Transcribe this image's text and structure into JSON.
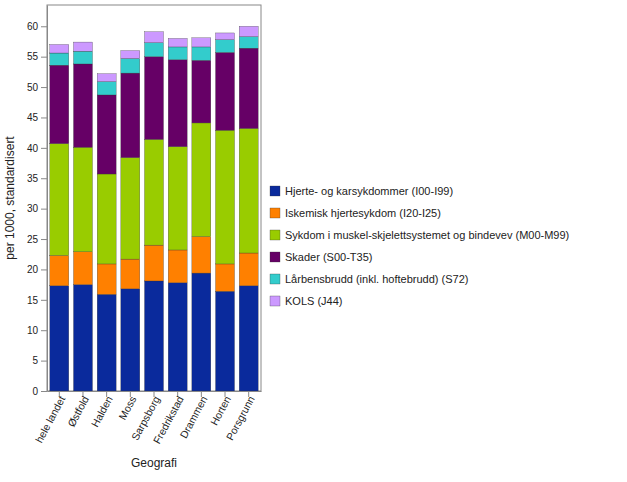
{
  "chart_data": {
    "type": "bar",
    "stacked": true,
    "grid": false,
    "legend": "right",
    "x_label": "Geografi",
    "y_label": "per 1000, standardisert",
    "categories": [
      "hele landet",
      "Østfold",
      "Halden",
      "Moss",
      "Sarpsborg",
      "Fredrikstad",
      "Drammen",
      "Horten",
      "Porsgrunn"
    ],
    "ylim": [
      0,
      63.5
    ],
    "yticks": [
      0,
      5,
      10,
      15,
      20,
      25,
      30,
      35,
      40,
      45,
      50,
      55,
      60
    ],
    "series": [
      {
        "name": "Hjerte- og karsykdommer (I00-I99)",
        "color": "#0a2a9c",
        "values": [
          17.3,
          17.5,
          15.9,
          16.8,
          18.1,
          17.8,
          19.4,
          16.4,
          17.3
        ]
      },
      {
        "name": "Iskemisk hjertesykdom (I20-I25)",
        "color": "#ff8000",
        "values": [
          5.0,
          5.4,
          5.0,
          4.9,
          5.9,
          5.4,
          6.0,
          4.5,
          5.4
        ]
      },
      {
        "name": "Sykdom i muskel-skjelettsystemet og bindevev (M00-M99)",
        "color": "#99cc00",
        "values": [
          18.4,
          17.2,
          14.8,
          16.7,
          17.4,
          17.0,
          18.7,
          22.0,
          20.5
        ]
      },
      {
        "name": "Skader (S00-T35)",
        "color": "#660066",
        "values": [
          12.9,
          13.7,
          13.0,
          13.9,
          13.6,
          14.3,
          10.3,
          12.8,
          13.2
        ]
      },
      {
        "name": "Lårbensbrudd (inkl. hoftebrudd) (S72)",
        "color": "#33cccc",
        "values": [
          2.0,
          2.1,
          2.2,
          2.4,
          2.3,
          2.1,
          2.2,
          2.1,
          1.9
        ]
      },
      {
        "name": "KOLS (J44)",
        "color": "#cc99ff",
        "values": [
          1.4,
          1.5,
          1.3,
          1.3,
          1.8,
          1.4,
          1.5,
          1.1,
          1.7
        ]
      }
    ]
  }
}
